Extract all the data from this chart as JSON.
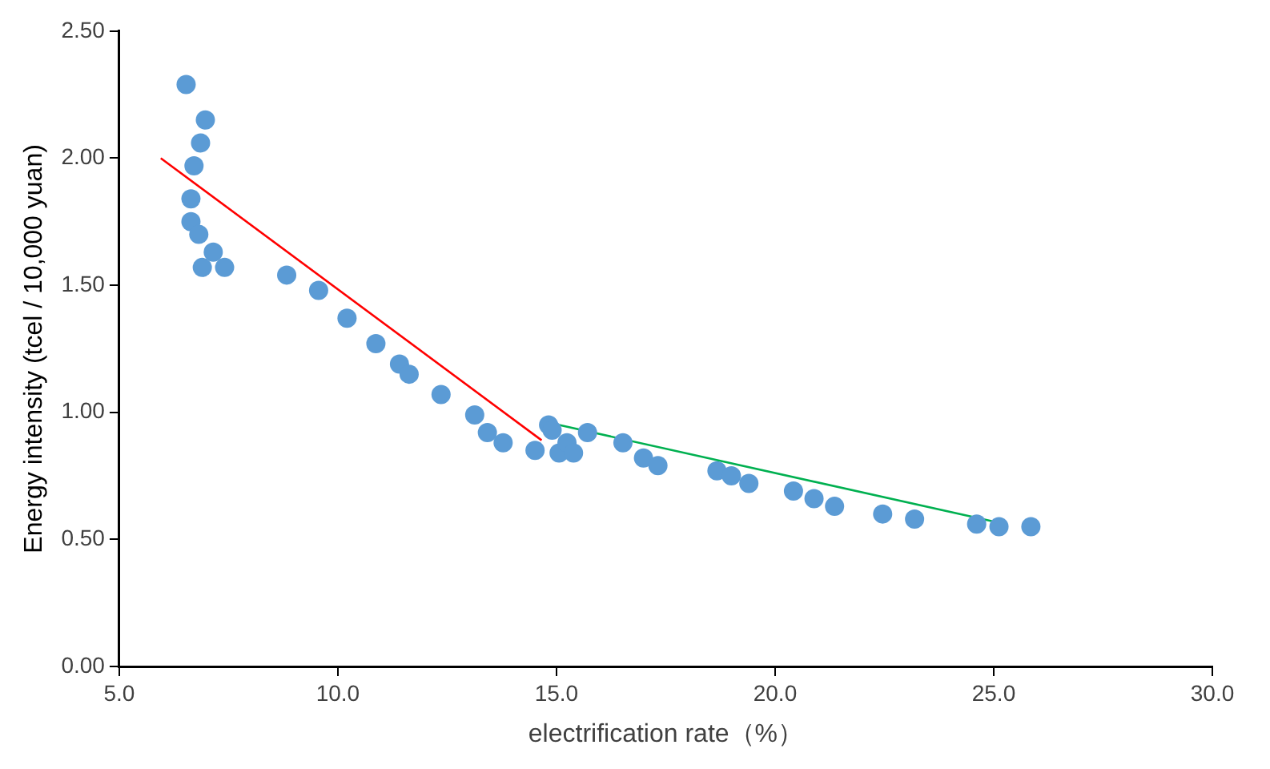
{
  "chart_data": {
    "type": "scatter",
    "xlabel": "electrification rate（%）",
    "ylabel": "Energy intensity (tcel / 10,000 yuan)",
    "xlim": [
      5,
      30
    ],
    "xticks": [
      {
        "value": 5,
        "label": "5.0"
      },
      {
        "value": 10,
        "label": "10.0"
      },
      {
        "value": 15,
        "label": "15.0"
      },
      {
        "value": 20,
        "label": "20.0"
      },
      {
        "value": 25,
        "label": "25.0"
      },
      {
        "value": 30,
        "label": "30.0"
      }
    ],
    "ylim": [
      0,
      2.5
    ],
    "yticks": [
      {
        "value": 0,
        "label": "0.00"
      },
      {
        "value": 0.5,
        "label": "0.50"
      },
      {
        "value": 1,
        "label": "1.00"
      },
      {
        "value": 1.5,
        "label": "1.50"
      },
      {
        "value": 2,
        "label": "2.00"
      },
      {
        "value": 2.5,
        "label": "2.50"
      }
    ],
    "grid": false,
    "legend": false,
    "marker": "circle",
    "series": [
      {
        "type": "scatter",
        "color": "#5b9bd5",
        "x": [
          6.53,
          6.97,
          6.86,
          6.71,
          6.64,
          6.64,
          6.82,
          6.9,
          7.15,
          7.41,
          8.83,
          9.56,
          10.21,
          10.87,
          11.41,
          11.63,
          12.36,
          13.13,
          13.42,
          13.78,
          14.51,
          14.82,
          14.9,
          15.06,
          15.24,
          15.39,
          15.71,
          16.52,
          16.99,
          17.32,
          18.67,
          19.0,
          19.4,
          20.42,
          20.89,
          21.36,
          22.46,
          23.19,
          24.61,
          25.12,
          25.85
        ],
        "values": [
          2.29,
          2.15,
          2.06,
          1.97,
          1.84,
          1.75,
          1.7,
          1.57,
          1.63,
          1.57,
          1.54,
          1.48,
          1.37,
          1.27,
          1.19,
          1.15,
          1.07,
          0.99,
          0.92,
          0.88,
          0.85,
          0.95,
          0.93,
          0.84,
          0.88,
          0.84,
          0.92,
          0.88,
          0.82,
          0.79,
          0.77,
          0.75,
          0.72,
          0.69,
          0.66,
          0.63,
          0.6,
          0.58,
          0.56,
          0.55,
          0.55
        ]
      },
      {
        "type": "line",
        "color": "#ff0000",
        "marker": "none",
        "x": [
          5.95,
          14.66
        ],
        "values": [
          2.0,
          0.89
        ]
      },
      {
        "type": "line",
        "color": "#00b050",
        "marker": "none",
        "x": [
          15.06,
          25.26
        ],
        "values": [
          0.95,
          0.56
        ]
      }
    ]
  }
}
